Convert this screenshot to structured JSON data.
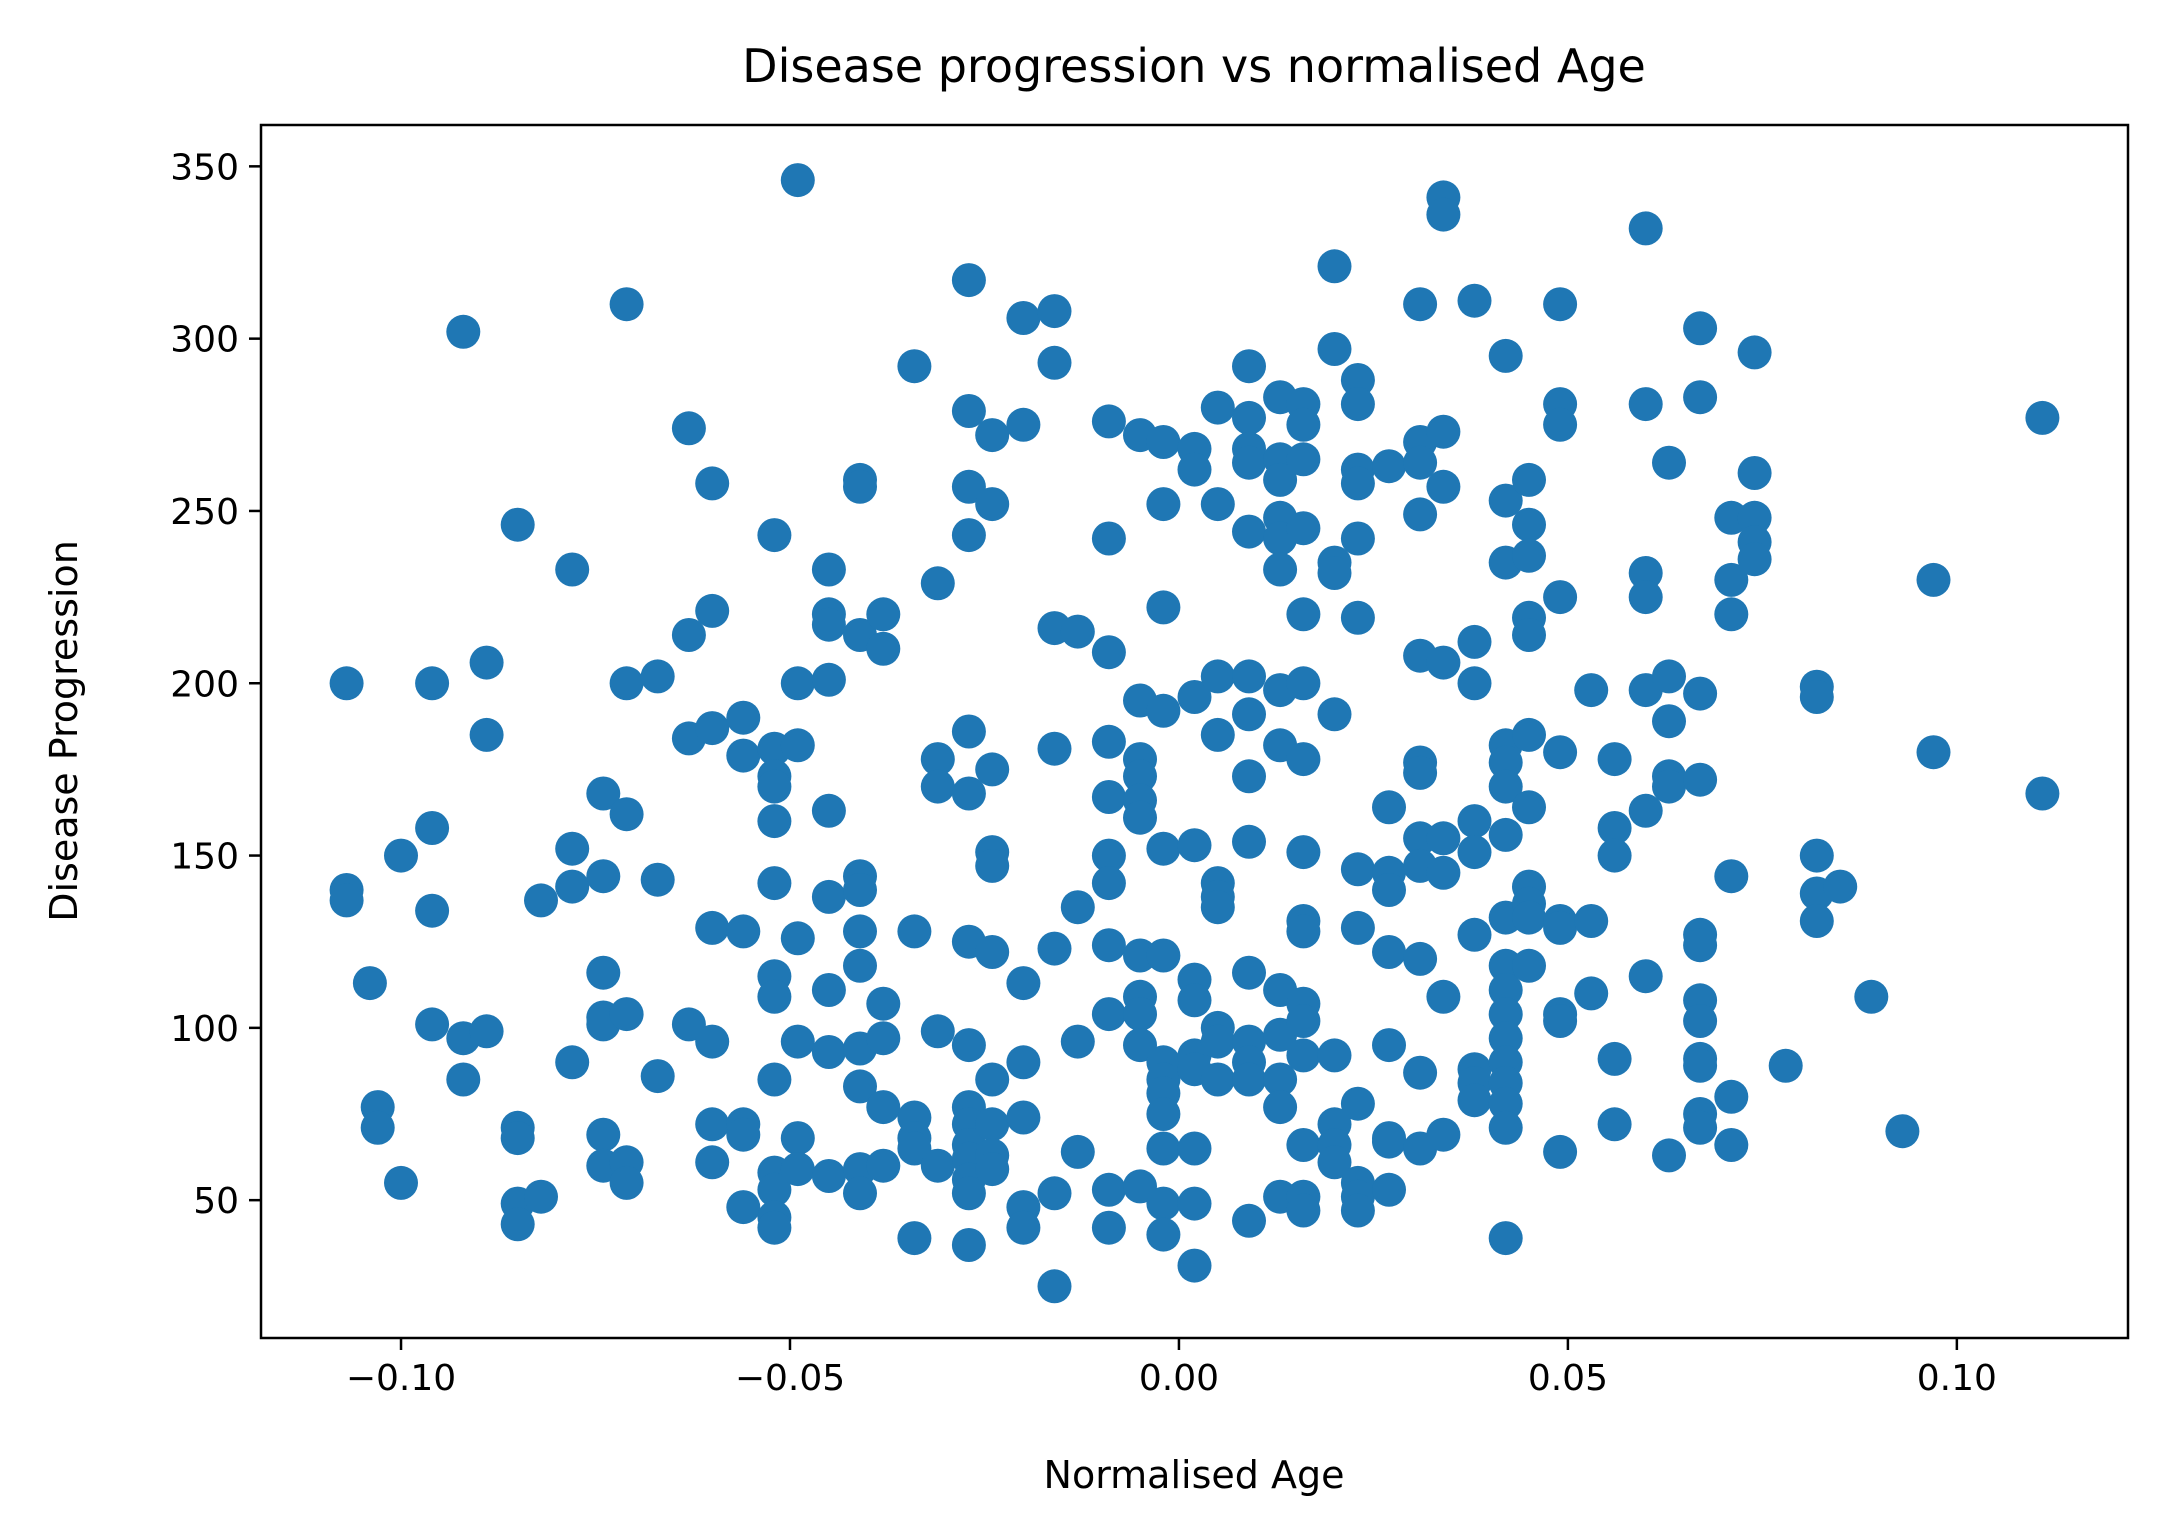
{
  "chart_data": {
    "type": "scatter",
    "title": "Disease progression vs normalised Age",
    "xlabel": "Normalised Age",
    "ylabel": "Disease Progression",
    "xlim": [
      -0.118,
      0.122
    ],
    "ylim": [
      10,
      362
    ],
    "xticks": [
      -0.1,
      -0.05,
      0.0,
      0.05,
      0.1
    ],
    "xtick_labels": [
      "−0.10",
      "−0.05",
      "0.00",
      "0.05",
      "0.10"
    ],
    "yticks": [
      50,
      100,
      150,
      200,
      250,
      300,
      350
    ],
    "ytick_labels": [
      "50",
      "100",
      "150",
      "200",
      "250",
      "300",
      "350"
    ],
    "grid": false,
    "color": "#1f77b4",
    "points": [
      [
        -0.107,
        200
      ],
      [
        -0.107,
        140
      ],
      [
        -0.107,
        137
      ],
      [
        -0.104,
        113
      ],
      [
        -0.103,
        77
      ],
      [
        -0.103,
        71
      ],
      [
        -0.1,
        150
      ],
      [
        -0.1,
        55
      ],
      [
        -0.096,
        200
      ],
      [
        -0.096,
        158
      ],
      [
        -0.096,
        134
      ],
      [
        -0.096,
        101
      ],
      [
        -0.092,
        302
      ],
      [
        -0.092,
        97
      ],
      [
        -0.092,
        85
      ],
      [
        -0.089,
        206
      ],
      [
        -0.089,
        185
      ],
      [
        -0.089,
        99
      ],
      [
        -0.085,
        246
      ],
      [
        -0.085,
        71
      ],
      [
        -0.085,
        68
      ],
      [
        -0.085,
        49
      ],
      [
        -0.085,
        43
      ],
      [
        -0.082,
        137
      ],
      [
        -0.082,
        51
      ],
      [
        -0.078,
        233
      ],
      [
        -0.078,
        152
      ],
      [
        -0.078,
        141
      ],
      [
        -0.078,
        90
      ],
      [
        -0.074,
        168
      ],
      [
        -0.074,
        144
      ],
      [
        -0.074,
        116
      ],
      [
        -0.074,
        103
      ],
      [
        -0.074,
        101
      ],
      [
        -0.074,
        69
      ],
      [
        -0.074,
        60
      ],
      [
        -0.071,
        310
      ],
      [
        -0.071,
        200
      ],
      [
        -0.071,
        162
      ],
      [
        -0.071,
        104
      ],
      [
        -0.071,
        61
      ],
      [
        -0.071,
        55
      ],
      [
        -0.067,
        202
      ],
      [
        -0.067,
        143
      ],
      [
        -0.067,
        86
      ],
      [
        -0.063,
        274
      ],
      [
        -0.063,
        214
      ],
      [
        -0.063,
        184
      ],
      [
        -0.063,
        101
      ],
      [
        -0.06,
        258
      ],
      [
        -0.06,
        221
      ],
      [
        -0.06,
        187
      ],
      [
        -0.06,
        129
      ],
      [
        -0.06,
        96
      ],
      [
        -0.06,
        72
      ],
      [
        -0.06,
        61
      ],
      [
        -0.056,
        190
      ],
      [
        -0.056,
        179
      ],
      [
        -0.056,
        128
      ],
      [
        -0.056,
        72
      ],
      [
        -0.056,
        69
      ],
      [
        -0.056,
        48
      ],
      [
        -0.052,
        243
      ],
      [
        -0.052,
        181
      ],
      [
        -0.052,
        173
      ],
      [
        -0.052,
        170
      ],
      [
        -0.052,
        160
      ],
      [
        -0.052,
        142
      ],
      [
        -0.052,
        115
      ],
      [
        -0.052,
        109
      ],
      [
        -0.052,
        85
      ],
      [
        -0.052,
        58
      ],
      [
        -0.052,
        53
      ],
      [
        -0.052,
        45
      ],
      [
        -0.052,
        42
      ],
      [
        -0.049,
        346
      ],
      [
        -0.049,
        200
      ],
      [
        -0.049,
        182
      ],
      [
        -0.049,
        126
      ],
      [
        -0.049,
        96
      ],
      [
        -0.049,
        68
      ],
      [
        -0.049,
        59
      ],
      [
        -0.045,
        233
      ],
      [
        -0.045,
        220
      ],
      [
        -0.045,
        217
      ],
      [
        -0.045,
        201
      ],
      [
        -0.045,
        163
      ],
      [
        -0.045,
        138
      ],
      [
        -0.045,
        111
      ],
      [
        -0.045,
        93
      ],
      [
        -0.045,
        57
      ],
      [
        -0.041,
        259
      ],
      [
        -0.041,
        257
      ],
      [
        -0.041,
        214
      ],
      [
        -0.041,
        144
      ],
      [
        -0.041,
        140
      ],
      [
        -0.041,
        128
      ],
      [
        -0.041,
        118
      ],
      [
        -0.041,
        94
      ],
      [
        -0.041,
        83
      ],
      [
        -0.041,
        59
      ],
      [
        -0.041,
        52
      ],
      [
        -0.038,
        220
      ],
      [
        -0.038,
        210
      ],
      [
        -0.038,
        107
      ],
      [
        -0.038,
        97
      ],
      [
        -0.038,
        77
      ],
      [
        -0.038,
        60
      ],
      [
        -0.034,
        292
      ],
      [
        -0.034,
        128
      ],
      [
        -0.034,
        74
      ],
      [
        -0.034,
        68
      ],
      [
        -0.034,
        65
      ],
      [
        -0.034,
        39
      ],
      [
        -0.031,
        229
      ],
      [
        -0.031,
        178
      ],
      [
        -0.031,
        170
      ],
      [
        -0.031,
        99
      ],
      [
        -0.031,
        60
      ],
      [
        -0.027,
        317
      ],
      [
        -0.027,
        279
      ],
      [
        -0.027,
        257
      ],
      [
        -0.027,
        243
      ],
      [
        -0.027,
        186
      ],
      [
        -0.027,
        168
      ],
      [
        -0.027,
        125
      ],
      [
        -0.027,
        95
      ],
      [
        -0.027,
        77
      ],
      [
        -0.027,
        72
      ],
      [
        -0.027,
        66
      ],
      [
        -0.027,
        62
      ],
      [
        -0.027,
        56
      ],
      [
        -0.027,
        52
      ],
      [
        -0.027,
        37
      ],
      [
        -0.024,
        272
      ],
      [
        -0.024,
        252
      ],
      [
        -0.024,
        175
      ],
      [
        -0.024,
        151
      ],
      [
        -0.024,
        147
      ],
      [
        -0.024,
        122
      ],
      [
        -0.024,
        85
      ],
      [
        -0.024,
        72
      ],
      [
        -0.024,
        63
      ],
      [
        -0.024,
        59
      ],
      [
        -0.02,
        306
      ],
      [
        -0.02,
        275
      ],
      [
        -0.02,
        113
      ],
      [
        -0.02,
        90
      ],
      [
        -0.02,
        74
      ],
      [
        -0.02,
        48
      ],
      [
        -0.02,
        42
      ],
      [
        -0.016,
        308
      ],
      [
        -0.016,
        293
      ],
      [
        -0.016,
        216
      ],
      [
        -0.016,
        181
      ],
      [
        -0.016,
        123
      ],
      [
        -0.016,
        52
      ],
      [
        -0.016,
        25
      ],
      [
        -0.013,
        215
      ],
      [
        -0.013,
        135
      ],
      [
        -0.013,
        96
      ],
      [
        -0.013,
        64
      ],
      [
        -0.009,
        276
      ],
      [
        -0.009,
        242
      ],
      [
        -0.009,
        209
      ],
      [
        -0.009,
        183
      ],
      [
        -0.009,
        167
      ],
      [
        -0.009,
        150
      ],
      [
        -0.009,
        142
      ],
      [
        -0.009,
        124
      ],
      [
        -0.009,
        104
      ],
      [
        -0.009,
        53
      ],
      [
        -0.009,
        42
      ],
      [
        -0.005,
        272
      ],
      [
        -0.005,
        195
      ],
      [
        -0.005,
        178
      ],
      [
        -0.005,
        173
      ],
      [
        -0.005,
        166
      ],
      [
        -0.005,
        161
      ],
      [
        -0.005,
        121
      ],
      [
        -0.005,
        109
      ],
      [
        -0.005,
        104
      ],
      [
        -0.005,
        95
      ],
      [
        -0.005,
        54
      ],
      [
        -0.002,
        270
      ],
      [
        -0.002,
        252
      ],
      [
        -0.002,
        222
      ],
      [
        -0.002,
        192
      ],
      [
        -0.002,
        152
      ],
      [
        -0.002,
        121
      ],
      [
        -0.002,
        90
      ],
      [
        -0.002,
        85
      ],
      [
        -0.002,
        81
      ],
      [
        -0.002,
        75
      ],
      [
        -0.002,
        65
      ],
      [
        -0.002,
        49
      ],
      [
        -0.002,
        40
      ],
      [
        0.002,
        268
      ],
      [
        0.002,
        262
      ],
      [
        0.002,
        196
      ],
      [
        0.002,
        153
      ],
      [
        0.002,
        114
      ],
      [
        0.002,
        108
      ],
      [
        0.002,
        92
      ],
      [
        0.002,
        88
      ],
      [
        0.002,
        65
      ],
      [
        0.002,
        49
      ],
      [
        0.002,
        31
      ],
      [
        0.005,
        280
      ],
      [
        0.005,
        252
      ],
      [
        0.005,
        202
      ],
      [
        0.005,
        185
      ],
      [
        0.005,
        142
      ],
      [
        0.005,
        138
      ],
      [
        0.005,
        135
      ],
      [
        0.005,
        100
      ],
      [
        0.005,
        96
      ],
      [
        0.005,
        85
      ],
      [
        0.009,
        292
      ],
      [
        0.009,
        277
      ],
      [
        0.009,
        268
      ],
      [
        0.009,
        264
      ],
      [
        0.009,
        244
      ],
      [
        0.009,
        202
      ],
      [
        0.009,
        191
      ],
      [
        0.009,
        173
      ],
      [
        0.009,
        154
      ],
      [
        0.009,
        116
      ],
      [
        0.009,
        96
      ],
      [
        0.009,
        90
      ],
      [
        0.009,
        85
      ],
      [
        0.009,
        44
      ],
      [
        0.013,
        283
      ],
      [
        0.013,
        265
      ],
      [
        0.013,
        259
      ],
      [
        0.013,
        248
      ],
      [
        0.013,
        242
      ],
      [
        0.013,
        233
      ],
      [
        0.013,
        198
      ],
      [
        0.013,
        182
      ],
      [
        0.013,
        111
      ],
      [
        0.013,
        98
      ],
      [
        0.013,
        85
      ],
      [
        0.013,
        77
      ],
      [
        0.013,
        51
      ],
      [
        0.016,
        281
      ],
      [
        0.016,
        275
      ],
      [
        0.016,
        265
      ],
      [
        0.016,
        245
      ],
      [
        0.016,
        220
      ],
      [
        0.016,
        200
      ],
      [
        0.016,
        178
      ],
      [
        0.016,
        151
      ],
      [
        0.016,
        131
      ],
      [
        0.016,
        128
      ],
      [
        0.016,
        107
      ],
      [
        0.016,
        102
      ],
      [
        0.016,
        92
      ],
      [
        0.016,
        66
      ],
      [
        0.016,
        51
      ],
      [
        0.016,
        47
      ],
      [
        0.02,
        321
      ],
      [
        0.02,
        297
      ],
      [
        0.02,
        235
      ],
      [
        0.02,
        232
      ],
      [
        0.02,
        191
      ],
      [
        0.02,
        92
      ],
      [
        0.02,
        72
      ],
      [
        0.02,
        66
      ],
      [
        0.02,
        61
      ],
      [
        0.023,
        288
      ],
      [
        0.023,
        281
      ],
      [
        0.023,
        262
      ],
      [
        0.023,
        258
      ],
      [
        0.023,
        242
      ],
      [
        0.023,
        219
      ],
      [
        0.023,
        146
      ],
      [
        0.023,
        129
      ],
      [
        0.023,
        78
      ],
      [
        0.023,
        55
      ],
      [
        0.023,
        51
      ],
      [
        0.023,
        47
      ],
      [
        0.027,
        263
      ],
      [
        0.027,
        164
      ],
      [
        0.027,
        145
      ],
      [
        0.027,
        140
      ],
      [
        0.027,
        122
      ],
      [
        0.027,
        95
      ],
      [
        0.027,
        68
      ],
      [
        0.027,
        67
      ],
      [
        0.027,
        53
      ],
      [
        0.031,
        310
      ],
      [
        0.031,
        270
      ],
      [
        0.031,
        264
      ],
      [
        0.031,
        249
      ],
      [
        0.031,
        208
      ],
      [
        0.031,
        177
      ],
      [
        0.031,
        174
      ],
      [
        0.031,
        155
      ],
      [
        0.031,
        147
      ],
      [
        0.031,
        120
      ],
      [
        0.031,
        87
      ],
      [
        0.031,
        65
      ],
      [
        0.034,
        341
      ],
      [
        0.034,
        336
      ],
      [
        0.034,
        273
      ],
      [
        0.034,
        257
      ],
      [
        0.034,
        206
      ],
      [
        0.034,
        155
      ],
      [
        0.034,
        145
      ],
      [
        0.034,
        109
      ],
      [
        0.034,
        69
      ],
      [
        0.038,
        311
      ],
      [
        0.038,
        212
      ],
      [
        0.038,
        200
      ],
      [
        0.038,
        160
      ],
      [
        0.038,
        151
      ],
      [
        0.038,
        127
      ],
      [
        0.038,
        88
      ],
      [
        0.038,
        84
      ],
      [
        0.038,
        79
      ],
      [
        0.042,
        295
      ],
      [
        0.042,
        253
      ],
      [
        0.042,
        235
      ],
      [
        0.042,
        182
      ],
      [
        0.042,
        177
      ],
      [
        0.042,
        170
      ],
      [
        0.042,
        156
      ],
      [
        0.042,
        132
      ],
      [
        0.042,
        118
      ],
      [
        0.042,
        111
      ],
      [
        0.042,
        104
      ],
      [
        0.042,
        97
      ],
      [
        0.042,
        90
      ],
      [
        0.042,
        84
      ],
      [
        0.042,
        78
      ],
      [
        0.042,
        71
      ],
      [
        0.042,
        39
      ],
      [
        0.045,
        259
      ],
      [
        0.045,
        246
      ],
      [
        0.045,
        237
      ],
      [
        0.045,
        219
      ],
      [
        0.045,
        214
      ],
      [
        0.045,
        185
      ],
      [
        0.045,
        164
      ],
      [
        0.045,
        141
      ],
      [
        0.045,
        136
      ],
      [
        0.045,
        132
      ],
      [
        0.045,
        118
      ],
      [
        0.049,
        310
      ],
      [
        0.049,
        281
      ],
      [
        0.049,
        275
      ],
      [
        0.049,
        225
      ],
      [
        0.049,
        180
      ],
      [
        0.049,
        131
      ],
      [
        0.049,
        129
      ],
      [
        0.049,
        104
      ],
      [
        0.049,
        102
      ],
      [
        0.049,
        64
      ],
      [
        0.053,
        198
      ],
      [
        0.053,
        131
      ],
      [
        0.053,
        110
      ],
      [
        0.056,
        178
      ],
      [
        0.056,
        158
      ],
      [
        0.056,
        150
      ],
      [
        0.056,
        91
      ],
      [
        0.056,
        72
      ],
      [
        0.06,
        332
      ],
      [
        0.06,
        281
      ],
      [
        0.06,
        232
      ],
      [
        0.06,
        225
      ],
      [
        0.06,
        198
      ],
      [
        0.06,
        163
      ],
      [
        0.06,
        115
      ],
      [
        0.063,
        264
      ],
      [
        0.063,
        202
      ],
      [
        0.063,
        189
      ],
      [
        0.063,
        173
      ],
      [
        0.063,
        170
      ],
      [
        0.063,
        63
      ],
      [
        0.067,
        303
      ],
      [
        0.067,
        283
      ],
      [
        0.067,
        197
      ],
      [
        0.067,
        172
      ],
      [
        0.067,
        127
      ],
      [
        0.067,
        124
      ],
      [
        0.067,
        108
      ],
      [
        0.067,
        102
      ],
      [
        0.067,
        91
      ],
      [
        0.067,
        89
      ],
      [
        0.067,
        75
      ],
      [
        0.067,
        71
      ],
      [
        0.071,
        248
      ],
      [
        0.071,
        230
      ],
      [
        0.071,
        220
      ],
      [
        0.071,
        144
      ],
      [
        0.071,
        80
      ],
      [
        0.071,
        66
      ],
      [
        0.074,
        296
      ],
      [
        0.074,
        261
      ],
      [
        0.074,
        248
      ],
      [
        0.074,
        241
      ],
      [
        0.074,
        236
      ],
      [
        0.078,
        89
      ],
      [
        0.082,
        199
      ],
      [
        0.082,
        196
      ],
      [
        0.082,
        150
      ],
      [
        0.082,
        139
      ],
      [
        0.082,
        131
      ],
      [
        0.085,
        141
      ],
      [
        0.089,
        109
      ],
      [
        0.093,
        70
      ],
      [
        0.097,
        230
      ],
      [
        0.097,
        180
      ],
      [
        0.111,
        277
      ],
      [
        0.111,
        168
      ]
    ]
  }
}
